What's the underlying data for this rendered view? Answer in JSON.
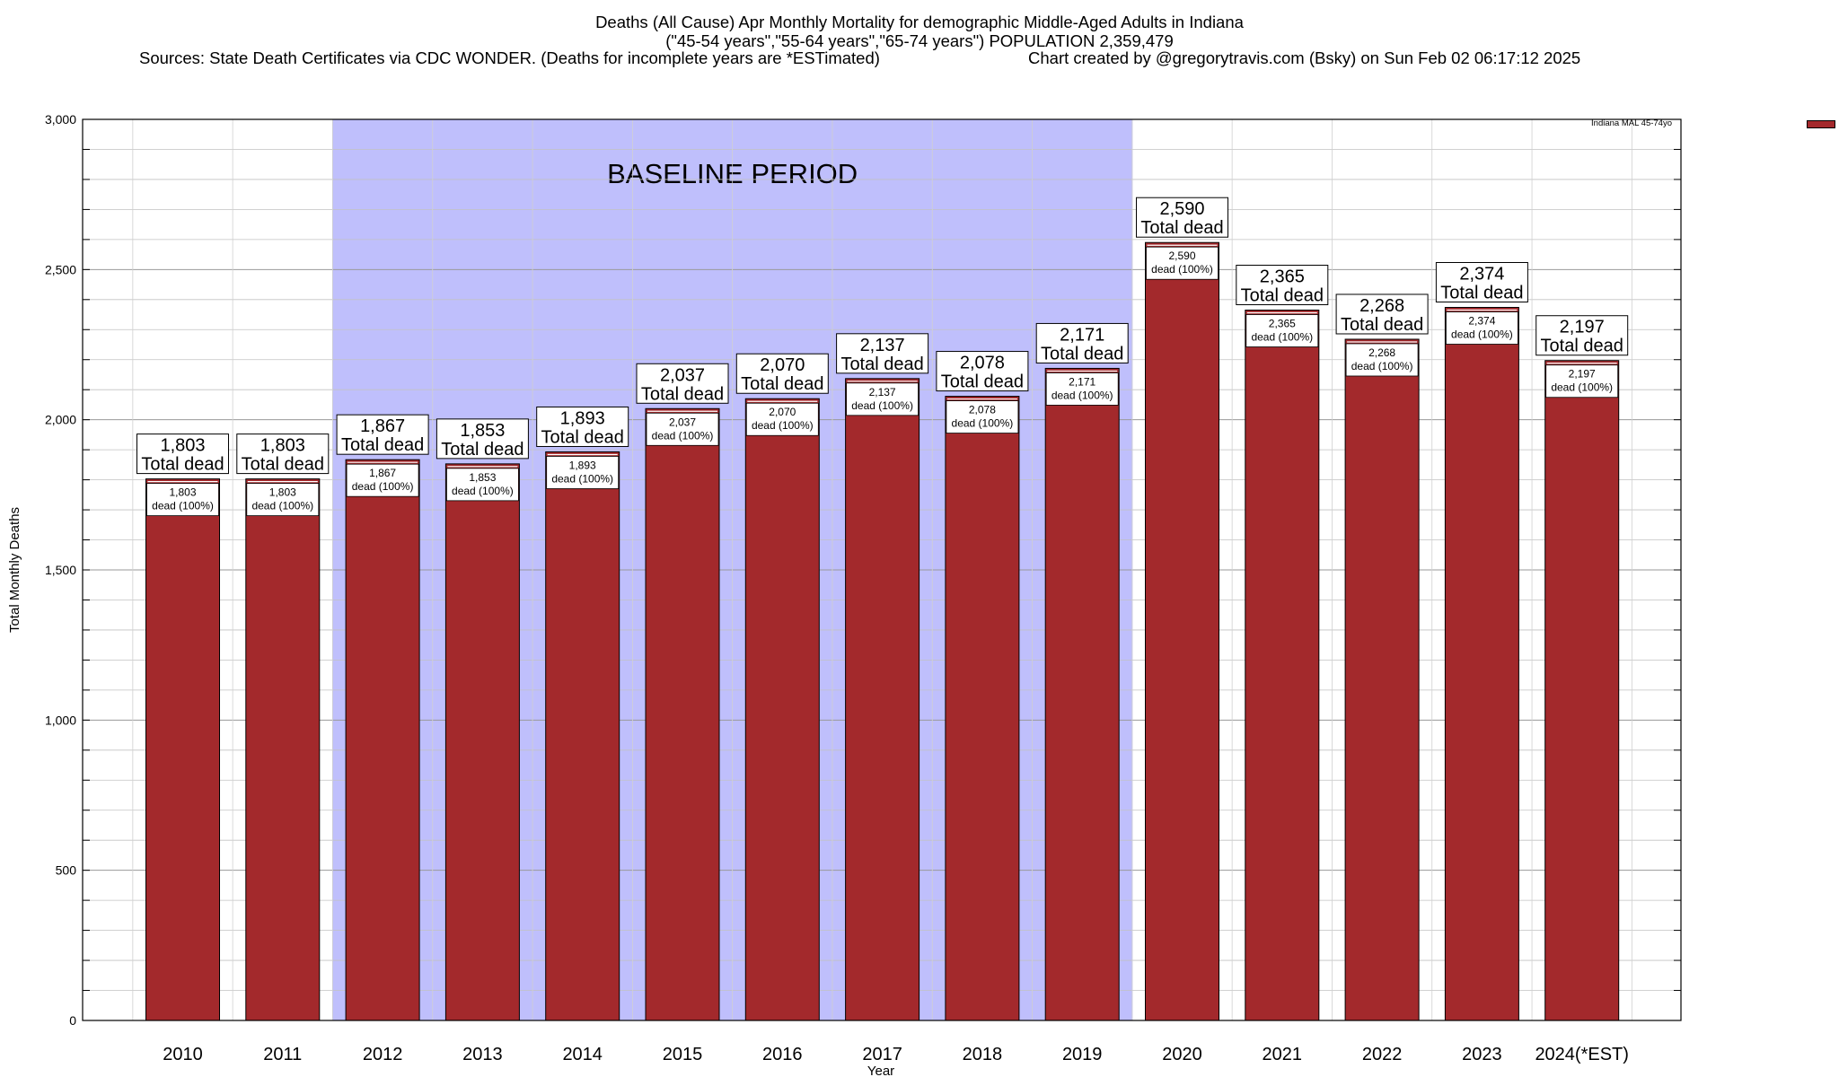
{
  "titles": {
    "line1": "Deaths (All Cause) Apr Monthly Mortality for demographic Middle-Aged Adults in Indiana",
    "line2": "(\"45-54 years\",\"55-64 years\",\"65-74 years\") POPULATION 2,359,479",
    "sources": "Sources: State Death Certificates via CDC WONDER. (Deaths for incomplete years are *ESTimated)",
    "credit": "Chart created by @gregorytravis.com (Bsky) on Sun Feb 02 06:17:12 2025"
  },
  "chart_data": {
    "type": "bar",
    "title": "Deaths (All Cause) Apr Monthly Mortality for demographic Middle-Aged Adults in Indiana",
    "xlabel": "Year",
    "ylabel": "Total Monthly Deaths",
    "ylim": [
      0,
      3000
    ],
    "y_ticks": [
      0,
      500,
      1000,
      1500,
      2000,
      2500,
      3000
    ],
    "y_tick_labels": [
      "0",
      "500",
      "1,000",
      "1,500",
      "2,000",
      "2,500",
      "3,000"
    ],
    "y_minor_step": 100,
    "grid": true,
    "legend_position": "top-right",
    "categories": [
      "2010",
      "2011",
      "2012",
      "2013",
      "2014",
      "2015",
      "2016",
      "2017",
      "2018",
      "2019",
      "2020",
      "2021",
      "2022",
      "2023",
      "2024(*EST)"
    ],
    "series": [
      {
        "name": "Indiana MAL 45-74yo",
        "color": "#a3292c",
        "values": [
          1803,
          1803,
          1867,
          1853,
          1893,
          2037,
          2070,
          2137,
          2078,
          2171,
          2590,
          2365,
          2268,
          2374,
          2197
        ]
      }
    ],
    "top_labels": [
      "1,803",
      "1,803",
      "1,867",
      "1,853",
      "1,893",
      "2,037",
      "2,070",
      "2,137",
      "2,078",
      "2,171",
      "2,590",
      "2,365",
      "2,268",
      "2,374",
      "2,197"
    ],
    "top_label_suffix": "Total dead",
    "inner_label_suffix": "dead (100%)",
    "baseline": {
      "label": "BASELINE PERIOD",
      "start": "2012",
      "end": "2019",
      "color": "#bfbffc"
    }
  }
}
